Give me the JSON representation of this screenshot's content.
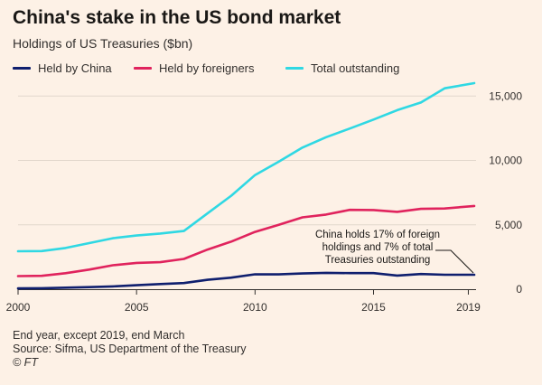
{
  "header": {
    "title": "China's stake in the US bond market",
    "subtitle": "Holdings of US Treasuries ($bn)"
  },
  "footer": {
    "note": "End year, except 2019, end March",
    "source": "Source: Sifma, US Department of the Treasury",
    "credit": "© FT"
  },
  "colors": {
    "china": "#0f1f6e",
    "foreigners": "#e0235d",
    "total": "#2fd8e3",
    "grid": "#e2d7cc",
    "axis": "#33302e"
  },
  "chart_data": {
    "type": "line",
    "title": "China's stake in the US bond market",
    "ylabel": "Holdings of US Treasuries ($bn)",
    "xlim": [
      2000,
      2019.25
    ],
    "ylim": [
      0,
      16000
    ],
    "x_ticks": [
      2000,
      2005,
      2010,
      2015,
      2019
    ],
    "x_tick_labels": [
      "2000",
      "2005",
      "2010",
      "2015",
      "2019"
    ],
    "y_ticks": [
      0,
      5000,
      10000,
      15000
    ],
    "y_tick_labels": [
      "0",
      "5,000",
      "10,000",
      "15,000"
    ],
    "grid": "horizontal",
    "legend_position": "top",
    "x": [
      2000,
      2001,
      2002,
      2003,
      2004,
      2005,
      2006,
      2007,
      2008,
      2009,
      2010,
      2011,
      2012,
      2013,
      2014,
      2015,
      2016,
      2017,
      2018,
      2019.25
    ],
    "series": [
      {
        "name": "Held by China",
        "color_key": "china",
        "values": [
          60,
          80,
          120,
          160,
          220,
          310,
          400,
          480,
          730,
          900,
          1160,
          1150,
          1220,
          1270,
          1250,
          1250,
          1060,
          1180,
          1120,
          1120
        ]
      },
      {
        "name": "Held by foreigners",
        "color_key": "foreigners",
        "values": [
          1020,
          1040,
          1240,
          1520,
          1860,
          2040,
          2100,
          2350,
          3080,
          3700,
          4450,
          5000,
          5580,
          5800,
          6160,
          6150,
          6010,
          6240,
          6270,
          6460
        ]
      },
      {
        "name": "Total outstanding",
        "color_key": "total",
        "values": [
          2950,
          2960,
          3200,
          3580,
          3960,
          4170,
          4320,
          4520,
          5900,
          7260,
          8860,
          9900,
          11000,
          11800,
          12480,
          13170,
          13900,
          14500,
          15600,
          16000
        ]
      }
    ],
    "annotation": {
      "lines": [
        "China holds 17% of foreign",
        "holdings and 7% of total",
        "Treasuries outstanding"
      ],
      "target_x": 2019.25,
      "target_y": 1120
    }
  }
}
